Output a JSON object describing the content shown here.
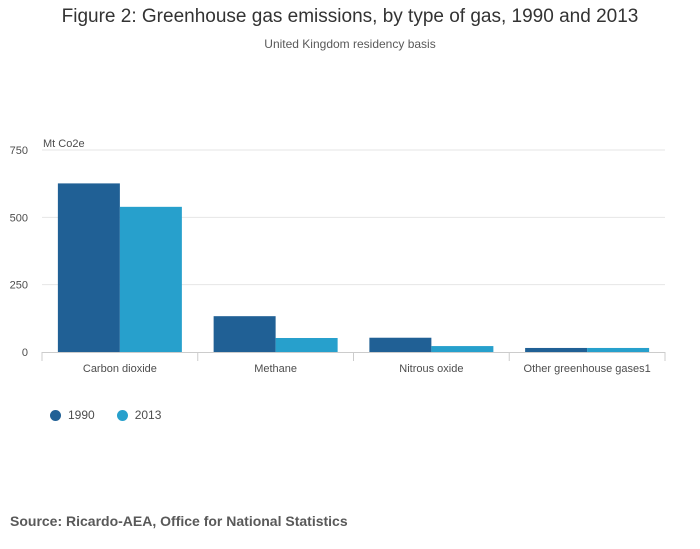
{
  "header": {
    "title": "Figure 2: Greenhouse gas emissions, by type of gas, 1990 and 2013",
    "subtitle": "United Kingdom residency basis"
  },
  "footer": {
    "source": "Source: Ricardo-AEA, Office for National Statistics"
  },
  "colors": {
    "series_1990": "#206095",
    "series_2013": "#27a0cc",
    "grid": "#e6e6e6",
    "axis": "#cccccc"
  },
  "chart_data": {
    "type": "bar",
    "title": "Figure 2: Greenhouse gas emissions, by type of gas, 1990 and 2013",
    "subtitle": "United Kingdom residency basis",
    "ylabel": "Mt Co2e",
    "xlabel": "",
    "ylim": [
      0,
      750
    ],
    "yticks": [
      0,
      250,
      500,
      750
    ],
    "grid": true,
    "legend": "bottom-left",
    "categories": [
      "Carbon dioxide",
      "Methane",
      "Nitrous oxide",
      "Other greenhouse gases1"
    ],
    "series": [
      {
        "name": "1990",
        "values": [
          626,
          133,
          53,
          15
        ]
      },
      {
        "name": "2013",
        "values": [
          539,
          52,
          22,
          15
        ]
      }
    ]
  }
}
